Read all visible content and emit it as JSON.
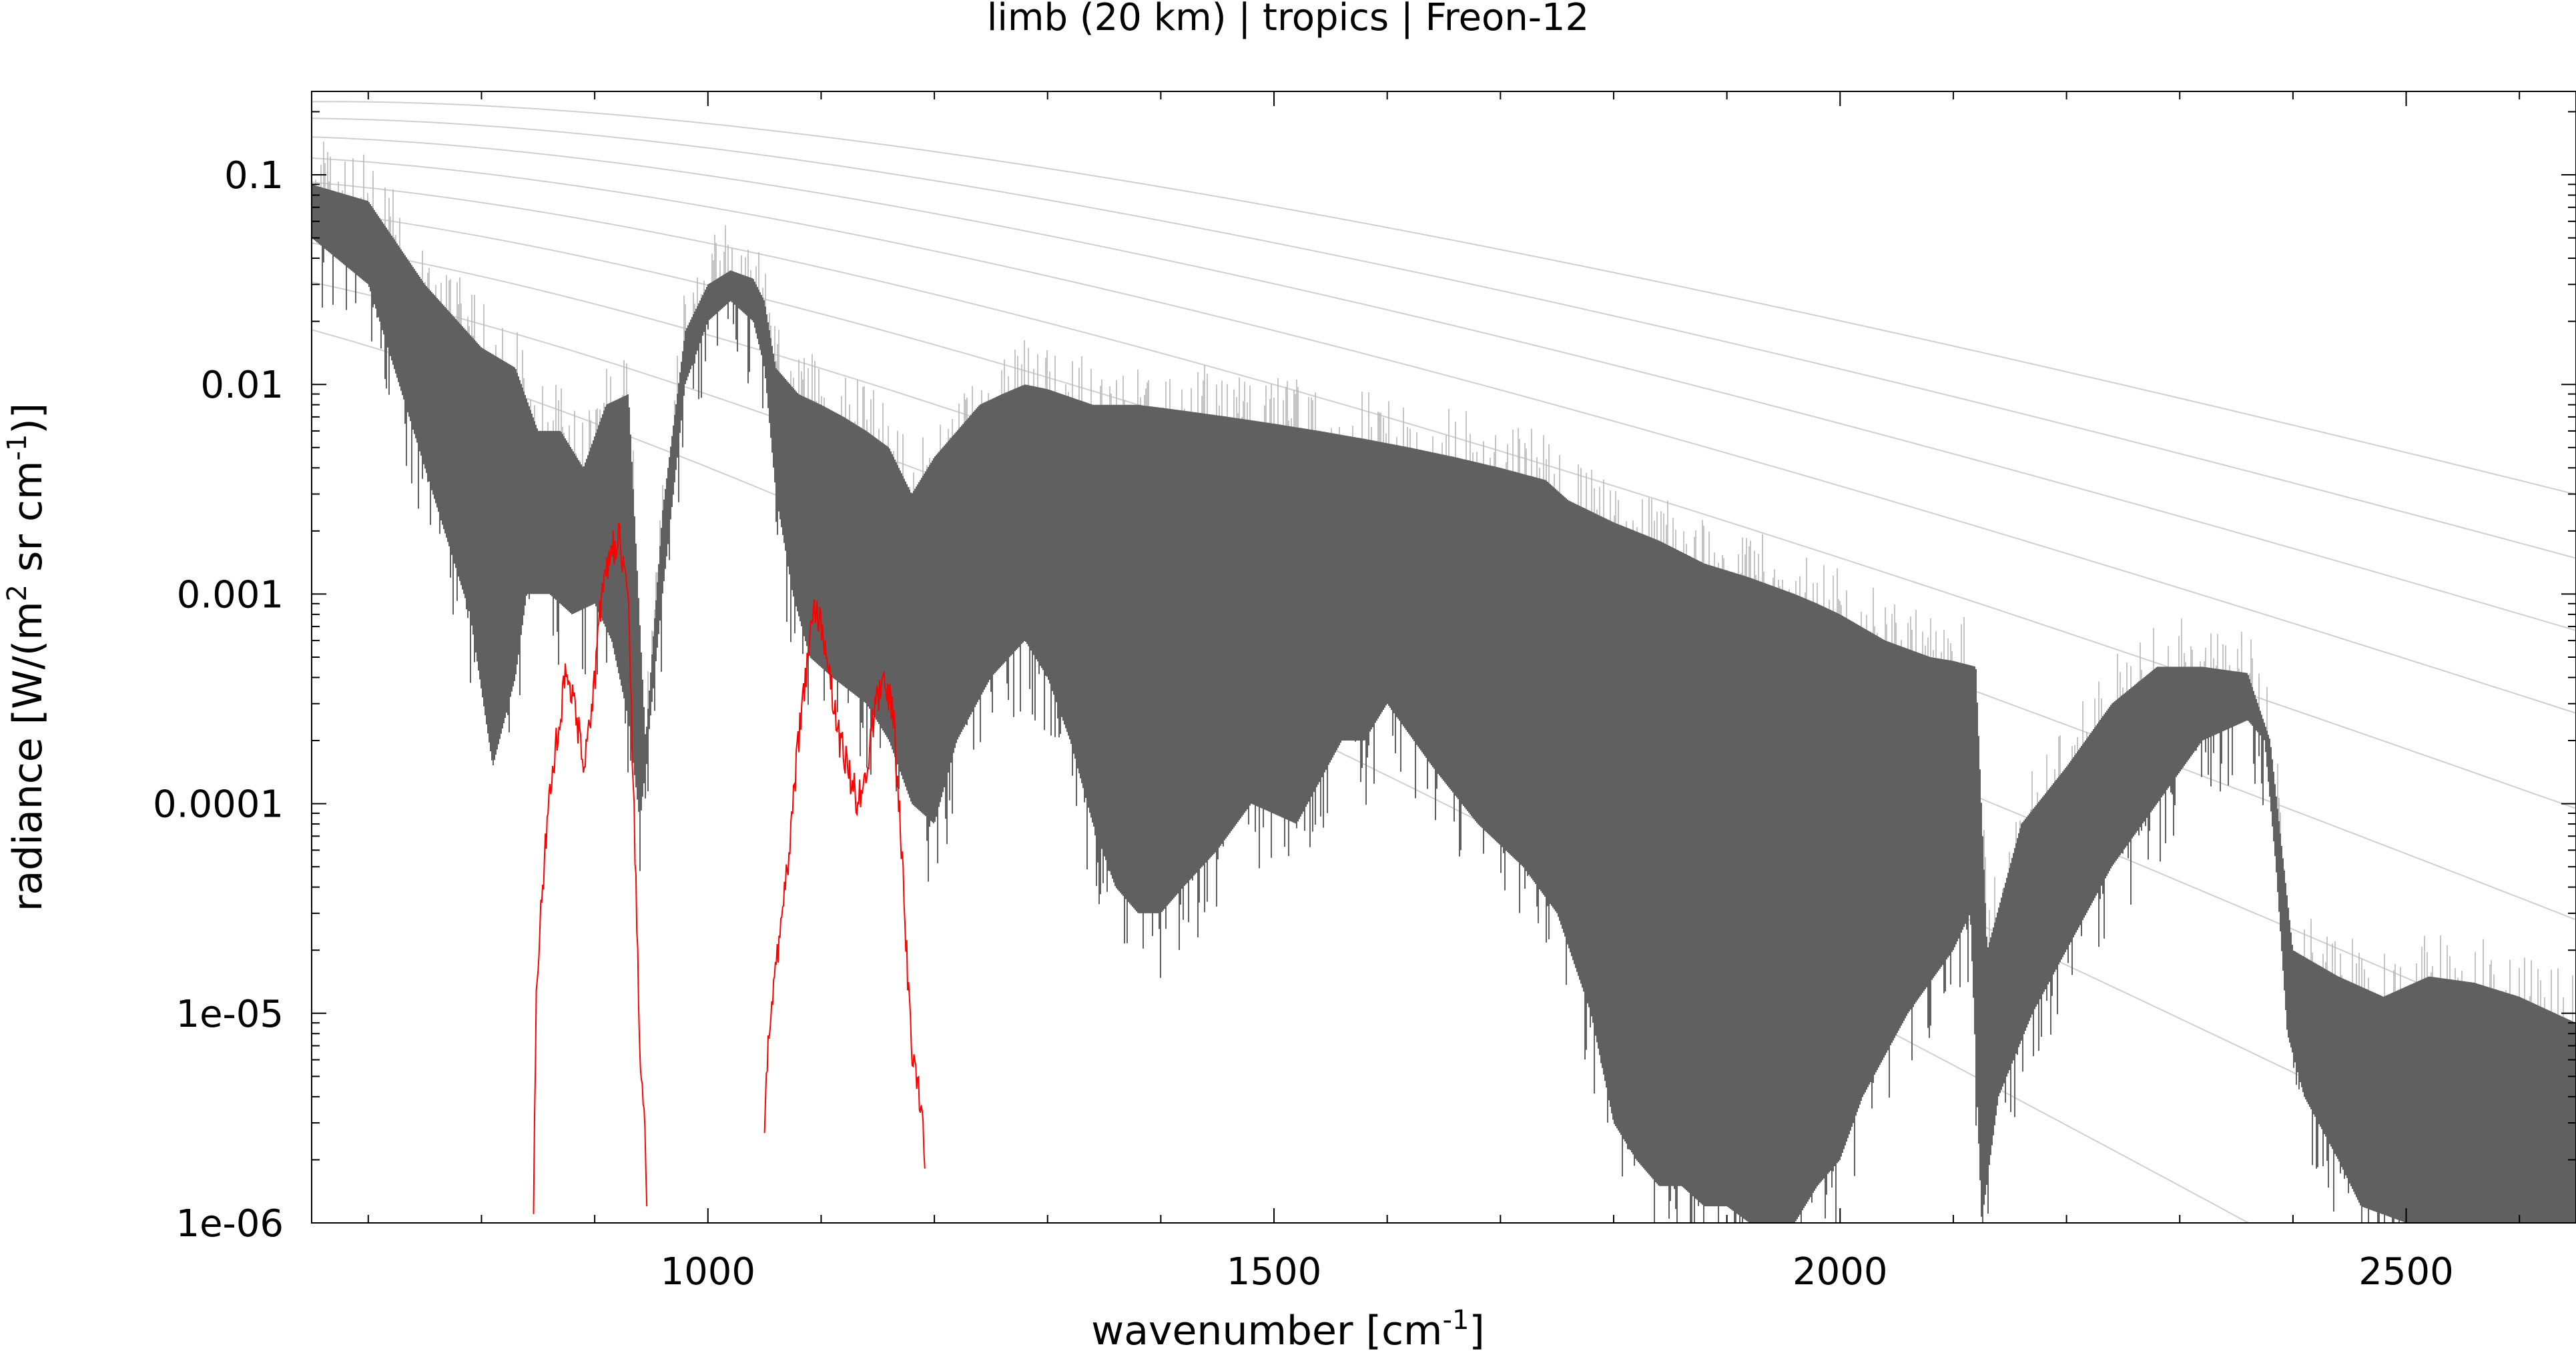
{
  "chart_data": {
    "type": "line",
    "title": "limb (20 km) | tropics | Freon-12",
    "xlabel": {
      "text": "wavenumber [cm",
      "sup": "-1",
      "tail": "]"
    },
    "ylabel": {
      "p1": "radiance [W/(m",
      "s1": "2",
      "p2": " sr cm",
      "s2": "-1",
      "p3": ")]"
    },
    "x_scale": "linear",
    "y_scale": "log",
    "xlim": [
      650,
      2650
    ],
    "ylim": [
      1e-06,
      0.25
    ],
    "x_ticks": [
      {
        "value": 1000,
        "label": "1000"
      },
      {
        "value": 1500,
        "label": "1500"
      },
      {
        "value": 2000,
        "label": "2000"
      },
      {
        "value": 2500,
        "label": "2500"
      }
    ],
    "y_ticks": [
      {
        "value": 0.1,
        "label": "0.1"
      },
      {
        "value": 0.01,
        "label": "0.01"
      },
      {
        "value": 0.001,
        "label": "0.001"
      },
      {
        "value": 0.0001,
        "label": "0.0001"
      },
      {
        "value": 1e-05,
        "label": "1e-05"
      },
      {
        "value": 1e-06,
        "label": "1e-06"
      }
    ],
    "grid": false,
    "legend": "none",
    "colors": {
      "spectrum_upper": "#b8b8b8",
      "spectrum_lower": "#606060",
      "target_gas": "#ff0000",
      "planck": "#cfcfcf"
    },
    "planck_reference_temperatures_K": [
      180,
      200,
      220,
      240,
      260,
      280,
      300,
      320,
      340
    ],
    "series": [
      {
        "role": "total-spectrum-upper-envelope",
        "x": [
          650,
          700,
          750,
          800,
          830,
          850,
          870,
          890,
          910,
          930,
          945,
          960,
          980,
          1000,
          1020,
          1040,
          1050,
          1060,
          1080,
          1100,
          1120,
          1140,
          1160,
          1180,
          1200,
          1220,
          1240,
          1260,
          1280,
          1300,
          1340,
          1380,
          1420,
          1460,
          1500,
          1540,
          1580,
          1620,
          1660,
          1700,
          1740,
          1760,
          1800,
          1840,
          1880,
          1920,
          1960,
          1980,
          2000,
          2040,
          2080,
          2100,
          2120,
          2130,
          2160,
          2200,
          2240,
          2280,
          2320,
          2360,
          2380,
          2400,
          2440,
          2480,
          2520,
          2560,
          2600,
          2650
        ],
        "values": [
          0.09,
          0.075,
          0.03,
          0.015,
          0.012,
          0.006,
          0.006,
          0.004,
          0.008,
          0.009,
          0.0002,
          0.0025,
          0.018,
          0.03,
          0.035,
          0.032,
          0.025,
          0.012,
          0.009,
          0.008,
          0.007,
          0.006,
          0.005,
          0.003,
          0.0045,
          0.006,
          0.008,
          0.009,
          0.01,
          0.0095,
          0.008,
          0.008,
          0.0075,
          0.007,
          0.0065,
          0.006,
          0.0055,
          0.005,
          0.0045,
          0.004,
          0.0035,
          0.0028,
          0.0022,
          0.0018,
          0.0014,
          0.0012,
          0.001,
          0.0009,
          0.0008,
          0.0006,
          0.0005,
          0.00048,
          0.00045,
          2e-05,
          8e-05,
          0.00015,
          0.0003,
          0.00045,
          0.00045,
          0.00042,
          0.0002,
          2e-05,
          1.5e-05,
          1.2e-05,
          1.5e-05,
          1.4e-05,
          1.2e-05,
          9e-06
        ]
      },
      {
        "role": "total-spectrum-lower-envelope",
        "x": [
          650,
          700,
          750,
          790,
          810,
          830,
          840,
          860,
          880,
          900,
          915,
          930,
          940,
          960,
          980,
          1000,
          1020,
          1040,
          1050,
          1060,
          1075,
          1090,
          1110,
          1140,
          1160,
          1180,
          1200,
          1220,
          1250,
          1280,
          1300,
          1320,
          1340,
          1360,
          1380,
          1400,
          1420,
          1450,
          1480,
          1520,
          1560,
          1580,
          1600,
          1640,
          1680,
          1720,
          1750,
          1780,
          1800,
          1820,
          1840,
          1860,
          1880,
          1900,
          1920,
          1940,
          1960,
          1980,
          2000,
          2020,
          2060,
          2100,
          2115,
          2125,
          2140,
          2170,
          2200,
          2240,
          2280,
          2320,
          2360,
          2375,
          2385,
          2395,
          2410,
          2440,
          2460,
          2500,
          2540,
          2580,
          2620,
          2650
        ],
        "values": [
          0.05,
          0.03,
          0.004,
          0.0008,
          0.00015,
          0.0004,
          0.001,
          0.001,
          0.0008,
          0.0009,
          0.0006,
          0.00025,
          8e-05,
          0.001,
          0.01,
          0.02,
          0.025,
          0.02,
          0.012,
          0.003,
          0.001,
          0.0005,
          0.0004,
          0.0003,
          0.0002,
          0.0001,
          8e-05,
          0.0002,
          0.0004,
          0.0006,
          0.0004,
          0.0002,
          8e-05,
          4e-05,
          3e-05,
          3e-05,
          4e-05,
          6e-05,
          0.0001,
          8e-05,
          0.0002,
          0.0002,
          0.0003,
          0.00015,
          8e-05,
          5e-05,
          3e-05,
          1e-05,
          3e-06,
          2e-06,
          1.5e-06,
          1.5e-06,
          1.2e-06,
          1.2e-06,
          1e-06,
          1e-06,
          1e-06,
          1.5e-06,
          2e-06,
          4e-06,
          1e-05,
          2e-05,
          3e-05,
          1e-06,
          4e-06,
          1e-05,
          2e-05,
          5e-05,
          0.0001,
          0.0002,
          0.00025,
          0.0002,
          5e-05,
          8e-06,
          4e-06,
          2e-06,
          1.2e-06,
          1e-06,
          1e-06,
          1e-06,
          1e-06,
          1e-06
        ]
      },
      {
        "role": "target-gas-contribution",
        "segments": [
          {
            "x": [
              846,
              848,
              852,
              858,
              866,
              874,
              882,
              890,
              898,
              906,
              914,
              922,
              930,
              936,
              940,
              944,
              946
            ],
            "values": [
              1e-06,
              1e-05,
              3e-05,
              8e-05,
              0.0002,
              0.0004,
              0.0003,
              0.00015,
              0.0003,
              0.001,
              0.0015,
              0.002,
              0.0008,
              5e-05,
              6e-06,
              3e-06,
              1e-06
            ]
          },
          {
            "x": [
              1050,
              1054,
              1062,
              1070,
              1078,
              1086,
              1094,
              1100,
              1108,
              1116,
              1124,
              1132,
              1140,
              1148,
              1156,
              1164,
              1172,
              1180,
              1188,
              1192
            ],
            "values": [
              3e-06,
              8e-06,
              2e-05,
              5e-05,
              0.00015,
              0.0004,
              0.0009,
              0.0007,
              0.0004,
              0.0002,
              0.00015,
              0.0001,
              0.00015,
              0.0003,
              0.0004,
              0.00025,
              5e-05,
              6e-06,
              4e-06,
              2e-06
            ]
          }
        ]
      }
    ]
  }
}
